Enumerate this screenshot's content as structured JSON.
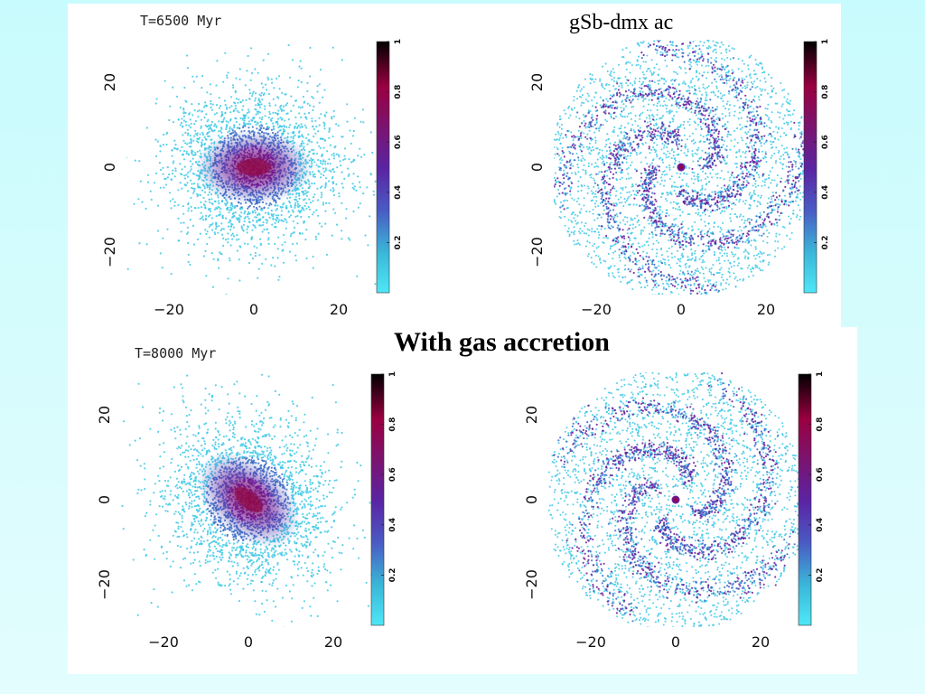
{
  "slide": {
    "model_label": "gSb-dmx ac",
    "accretion_label": "With gas accretion"
  },
  "panels": [
    {
      "time_label": "T=6500 Myr",
      "kind": "edge-on",
      "tilt_deg": 0
    },
    {
      "time_label": "",
      "kind": "face-on",
      "spiral_phase_deg": 0
    },
    {
      "time_label": "T=8000 Myr",
      "kind": "edge-on",
      "tilt_deg": -40
    },
    {
      "time_label": "",
      "kind": "face-on",
      "spiral_phase_deg": 55
    }
  ],
  "axes": {
    "x_ticks": [
      "−20",
      "0",
      "20"
    ],
    "y_ticks": [
      "20",
      "0",
      "−20"
    ]
  },
  "colorbar": {
    "ticks": [
      "0.2",
      "0.4",
      "0.6",
      "0.8",
      "1"
    ],
    "stops": [
      "#4fe7f6",
      "#3ab5d8",
      "#4a5bc4",
      "#5a24a4",
      "#7a1470",
      "#9a0040",
      "#000000"
    ]
  },
  "colors": {
    "sparse": "#3fc9e6",
    "mid": "#3a6cc8",
    "dense": "#6a1a9a",
    "core": "#8e0a4a"
  }
}
